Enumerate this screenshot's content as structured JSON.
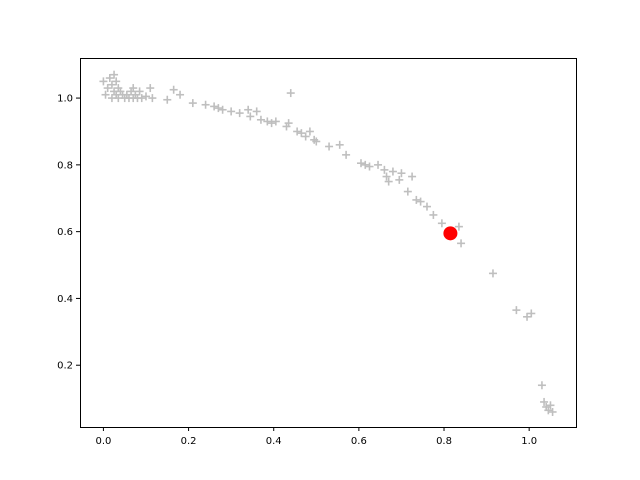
{
  "chart_data": {
    "type": "scatter",
    "title": "",
    "xlabel": "",
    "ylabel": "",
    "xlim": [
      -0.055,
      1.11
    ],
    "ylim": [
      0.015,
      1.12
    ],
    "grid": false,
    "legend": "none",
    "x_ticks": [
      0.0,
      0.2,
      0.4,
      0.6,
      0.8,
      1.0
    ],
    "x_tick_labels": [
      "0.0",
      "0.2",
      "0.4",
      "0.6",
      "0.8",
      "1.0"
    ],
    "y_ticks": [
      0.2,
      0.4,
      0.6,
      0.8,
      1.0
    ],
    "y_tick_labels": [
      "0.2",
      "0.4",
      "0.6",
      "0.8",
      "1.0"
    ],
    "series": [
      {
        "marker": "plus",
        "color": "#bfbfbf",
        "points": [
          [
            0.0,
            1.05
          ],
          [
            0.005,
            1.01
          ],
          [
            0.01,
            1.03
          ],
          [
            0.015,
            1.06
          ],
          [
            0.02,
            1.0
          ],
          [
            0.02,
            1.04
          ],
          [
            0.025,
            1.07
          ],
          [
            0.025,
            1.02
          ],
          [
            0.03,
            1.01
          ],
          [
            0.03,
            1.05
          ],
          [
            0.035,
            1.0
          ],
          [
            0.035,
            1.03
          ],
          [
            0.04,
            1.02
          ],
          [
            0.045,
            1.01
          ],
          [
            0.05,
            1.0
          ],
          [
            0.055,
            1.01
          ],
          [
            0.06,
            1.0
          ],
          [
            0.065,
            1.02
          ],
          [
            0.07,
            1.0
          ],
          [
            0.07,
            1.03
          ],
          [
            0.075,
            1.01
          ],
          [
            0.08,
            1.0
          ],
          [
            0.085,
            1.02
          ],
          [
            0.09,
            1.0
          ],
          [
            0.1,
            1.005
          ],
          [
            0.11,
            1.03
          ],
          [
            0.115,
            1.0
          ],
          [
            0.15,
            0.995
          ],
          [
            0.165,
            1.025
          ],
          [
            0.18,
            1.01
          ],
          [
            0.21,
            0.985
          ],
          [
            0.24,
            0.98
          ],
          [
            0.26,
            0.975
          ],
          [
            0.27,
            0.97
          ],
          [
            0.28,
            0.965
          ],
          [
            0.3,
            0.96
          ],
          [
            0.32,
            0.955
          ],
          [
            0.34,
            0.965
          ],
          [
            0.345,
            0.945
          ],
          [
            0.36,
            0.96
          ],
          [
            0.37,
            0.935
          ],
          [
            0.385,
            0.93
          ],
          [
            0.395,
            0.925
          ],
          [
            0.405,
            0.93
          ],
          [
            0.43,
            0.915
          ],
          [
            0.435,
            0.925
          ],
          [
            0.44,
            1.015
          ],
          [
            0.455,
            0.9
          ],
          [
            0.465,
            0.895
          ],
          [
            0.475,
            0.885
          ],
          [
            0.485,
            0.9
          ],
          [
            0.495,
            0.875
          ],
          [
            0.5,
            0.87
          ],
          [
            0.53,
            0.855
          ],
          [
            0.555,
            0.86
          ],
          [
            0.57,
            0.83
          ],
          [
            0.605,
            0.805
          ],
          [
            0.615,
            0.8
          ],
          [
            0.625,
            0.795
          ],
          [
            0.645,
            0.8
          ],
          [
            0.66,
            0.785
          ],
          [
            0.665,
            0.765
          ],
          [
            0.67,
            0.75
          ],
          [
            0.68,
            0.78
          ],
          [
            0.695,
            0.755
          ],
          [
            0.7,
            0.775
          ],
          [
            0.715,
            0.72
          ],
          [
            0.725,
            0.765
          ],
          [
            0.735,
            0.695
          ],
          [
            0.745,
            0.69
          ],
          [
            0.76,
            0.675
          ],
          [
            0.775,
            0.65
          ],
          [
            0.795,
            0.625
          ],
          [
            0.82,
            0.6
          ],
          [
            0.835,
            0.615
          ],
          [
            0.84,
            0.565
          ],
          [
            0.915,
            0.475
          ],
          [
            0.97,
            0.365
          ],
          [
            0.995,
            0.345
          ],
          [
            1.005,
            0.355
          ],
          [
            1.03,
            0.14
          ],
          [
            1.035,
            0.09
          ],
          [
            1.04,
            0.075
          ],
          [
            1.045,
            0.065
          ],
          [
            1.05,
            0.08
          ],
          [
            1.055,
            0.06
          ]
        ]
      },
      {
        "marker": "circle",
        "color": "#ff0000",
        "points": [
          [
            0.815,
            0.595
          ]
        ]
      }
    ]
  }
}
